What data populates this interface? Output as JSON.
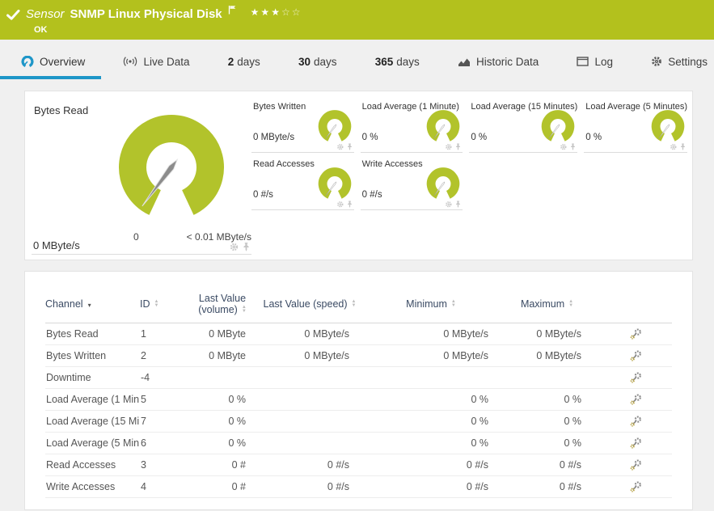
{
  "colors": {
    "brand_green": "#b3c11d",
    "accent_blue": "#1e96c8",
    "gauge_green": "#b2c32b"
  },
  "header": {
    "kind": "Sensor",
    "title": "SNMP Linux Physical Disk",
    "status": "OK",
    "rating_filled": 3,
    "rating_empty": 2
  },
  "tabs": [
    {
      "id": "overview",
      "icon": "gauge-icon",
      "label": "Overview",
      "active": true
    },
    {
      "id": "live-data",
      "icon": "live-data-icon",
      "label": "Live Data",
      "active": false
    },
    {
      "id": "2-days",
      "prefix": "2",
      "label": "days",
      "active": false
    },
    {
      "id": "30-days",
      "prefix": "30",
      "label": "days",
      "active": false
    },
    {
      "id": "365-days",
      "prefix": "365",
      "label": "days",
      "active": false
    },
    {
      "id": "historic-data",
      "icon": "chart-icon",
      "label": "Historic Data",
      "active": false
    },
    {
      "id": "log",
      "icon": "window-icon",
      "label": "Log",
      "active": false
    },
    {
      "id": "settings",
      "icon": "gear-icon",
      "label": "Settings",
      "active": false
    }
  ],
  "gauges": {
    "primary": {
      "title": "Bytes Read",
      "value": "0 MByte/s",
      "scale_min": "0",
      "scale_max": "< 0.01 MByte/s"
    },
    "small": [
      {
        "title": "Bytes Written",
        "value": "0 MByte/s"
      },
      {
        "title": "Load Average (1 Minute)",
        "value": "0 %"
      },
      {
        "title": "Load Average (15 Minutes)",
        "value": "0 %"
      },
      {
        "title": "Load Average (5 Minutes)",
        "value": "0 %"
      },
      {
        "title": "Read Accesses",
        "value": "0 #/s"
      },
      {
        "title": "Write Accesses",
        "value": "0 #/s"
      }
    ]
  },
  "table": {
    "columns": [
      {
        "label": "Channel",
        "sorted": "desc"
      },
      {
        "label": "ID"
      },
      {
        "label": "Last Value",
        "sub": "(volume)"
      },
      {
        "label": "Last Value (speed)"
      },
      {
        "label": "Minimum"
      },
      {
        "label": "Maximum"
      }
    ],
    "rows": [
      {
        "channel": "Bytes Read",
        "id": "1",
        "volume": "0 MByte",
        "speed": "0 MByte/s",
        "min": "0 MByte/s",
        "max": "0 MByte/s"
      },
      {
        "channel": "Bytes Written",
        "id": "2",
        "volume": "0 MByte",
        "speed": "0 MByte/s",
        "min": "0 MByte/s",
        "max": "0 MByte/s"
      },
      {
        "channel": "Downtime",
        "id": "-4",
        "volume": "",
        "speed": "",
        "min": "",
        "max": ""
      },
      {
        "channel": "Load Average (1 Min...",
        "id": "5",
        "volume": "0 %",
        "speed": "",
        "min": "0 %",
        "max": "0 %"
      },
      {
        "channel": "Load Average (15 Mi...",
        "id": "7",
        "volume": "0 %",
        "speed": "",
        "min": "0 %",
        "max": "0 %"
      },
      {
        "channel": "Load Average (5 Min...",
        "id": "6",
        "volume": "0 %",
        "speed": "",
        "min": "0 %",
        "max": "0 %"
      },
      {
        "channel": "Read Accesses",
        "id": "3",
        "volume": "0 #",
        "speed": "0 #/s",
        "min": "0 #/s",
        "max": "0 #/s"
      },
      {
        "channel": "Write Accesses",
        "id": "4",
        "volume": "0 #",
        "speed": "0 #/s",
        "min": "0 #/s",
        "max": "0 #/s"
      }
    ]
  }
}
